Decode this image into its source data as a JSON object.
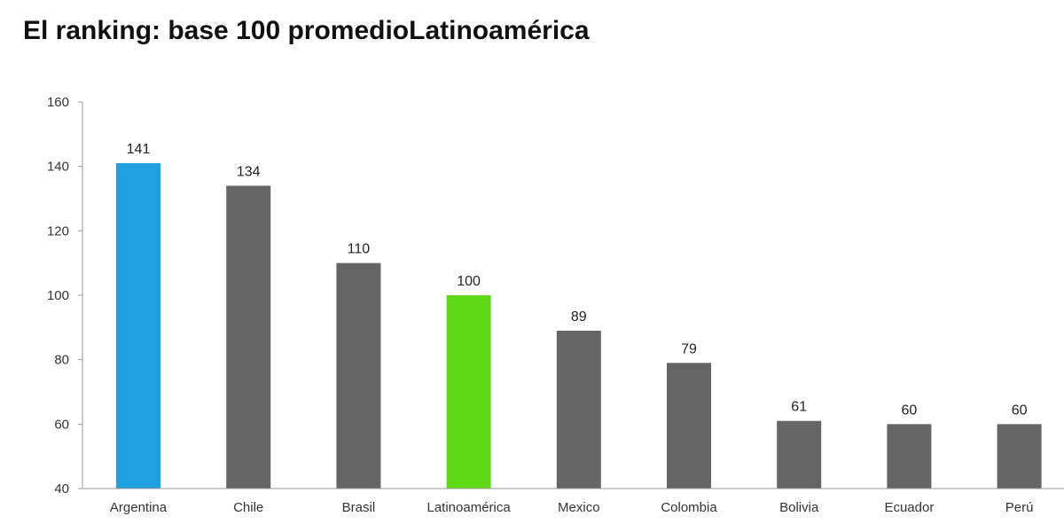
{
  "chart_data": {
    "type": "bar",
    "title": "El ranking: base 100 promedioLatinoamérica",
    "xlabel": "",
    "ylabel": "",
    "ylim": [
      40,
      160
    ],
    "yticks": [
      40,
      60,
      80,
      100,
      120,
      140,
      160
    ],
    "grid": false,
    "legend": "none",
    "categories": [
      "Argentina",
      "Chile",
      "Brasil",
      "Latinoamérica",
      "Mexico",
      "Colombia",
      "Bolivia",
      "Ecuador",
      "Perú"
    ],
    "values": [
      141,
      134,
      110,
      100,
      89,
      79,
      61,
      60,
      60
    ],
    "data_labels": [
      "141",
      "134",
      "110",
      "100",
      "89",
      "79",
      "61",
      "60",
      "60"
    ],
    "bar_colors": [
      "#1fa0e0",
      "#656565",
      "#656565",
      "#5fd915",
      "#656565",
      "#656565",
      "#656565",
      "#656565",
      "#656565"
    ],
    "axis_color": "#9a9a9a"
  }
}
